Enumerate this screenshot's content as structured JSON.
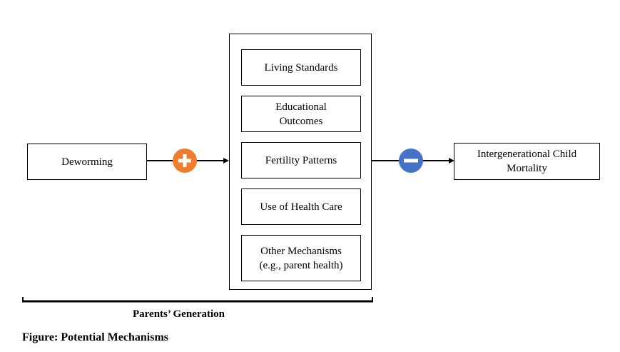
{
  "diagram": {
    "source": "Deworming",
    "mechanisms": [
      "Living  Standards",
      "Educational\nOutcomes",
      "Fertility Patterns",
      "Use of Health Care",
      "Other Mechanisms\n(e.g., parent health)"
    ],
    "outcome": "Intergenerational Child\nMortality",
    "bracket_label": "Parents’ Generation",
    "figure_caption": "Figure: Potential Mechanisms",
    "signs": {
      "left": "plus",
      "right": "minus"
    },
    "colors": {
      "plus": "#ED7D31",
      "minus": "#4472C4"
    }
  }
}
